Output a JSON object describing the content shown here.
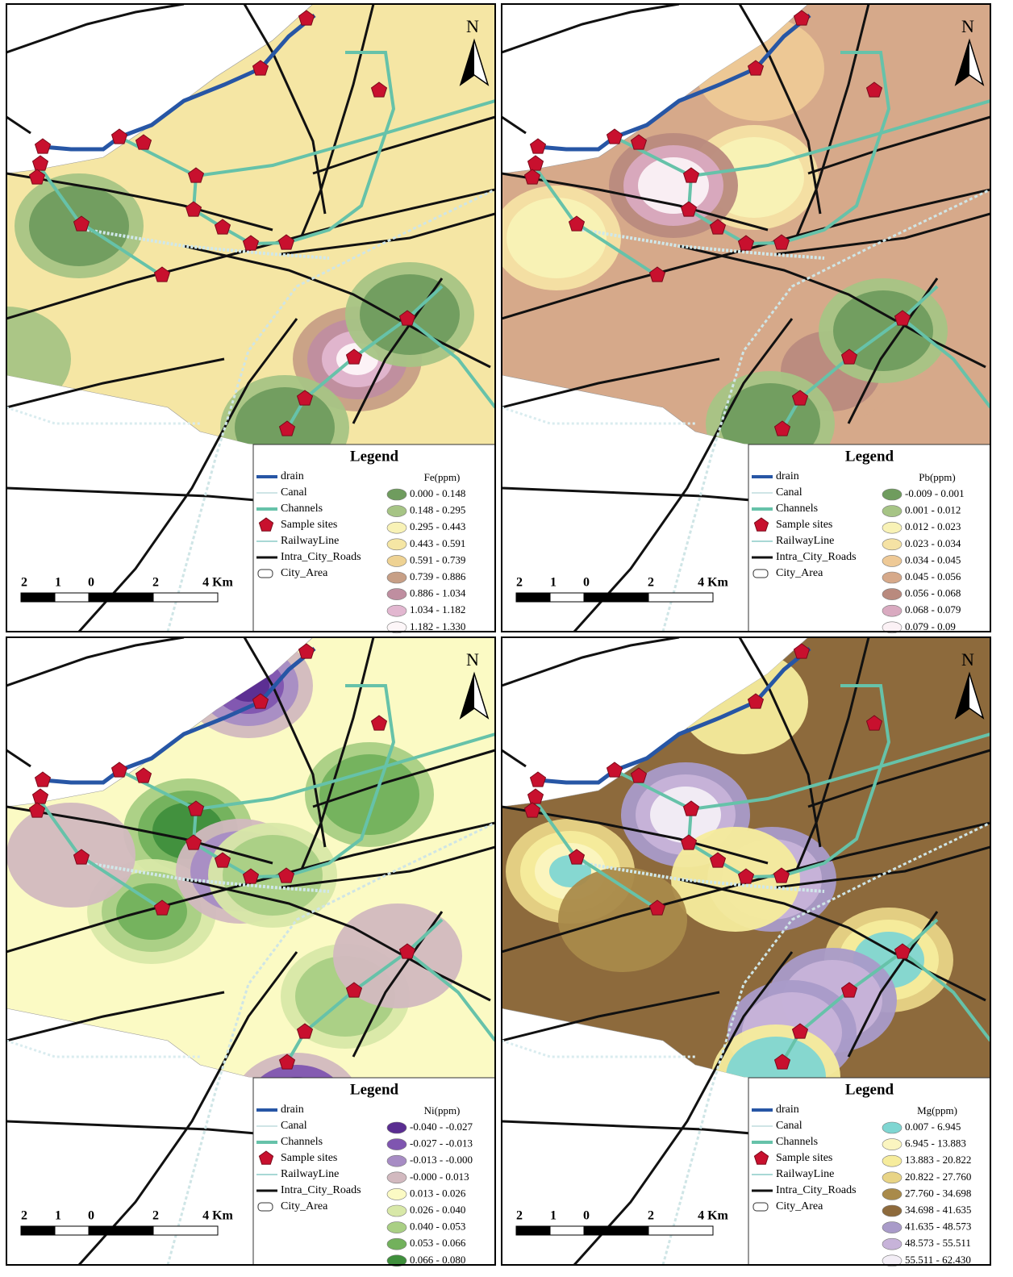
{
  "panels": [
    {
      "north": "N",
      "scale_labels": [
        "2",
        "1",
        "0",
        "2",
        "4 Km"
      ],
      "legend": {
        "title": "Legend",
        "layers": [
          "drain",
          "Canal",
          "Channels",
          "Sample sites",
          "RailwayLine",
          "Intra_City_Roads",
          "City_Area"
        ],
        "variable": "Fe(ppm)",
        "classes": [
          "0.000 - 0.148",
          "0.148 - 0.295",
          "0.295 - 0.443",
          "0.443 - 0.591",
          "0.591 - 0.739",
          "0.739 - 0.886",
          "0.886 - 1.034",
          "1.034 - 1.182",
          "1.182 - 1.330"
        ],
        "class_colors": [
          "#6f9c5e",
          "#a6c485",
          "#f8f2b6",
          "#f5e6a4",
          "#eed293",
          "#c79f86",
          "#bf8ea0",
          "#e2b7d0",
          "#fdf6f8"
        ]
      }
    },
    {
      "north": "N",
      "scale_labels": [
        "2",
        "1",
        "0",
        "2",
        "4 Km"
      ],
      "legend": {
        "title": "Legend",
        "layers": [
          "drain",
          "Canal",
          "Channels",
          "Sample sites",
          "RailwayLine",
          "Intra_City_Roads",
          "City_Area"
        ],
        "variable": "Pb(ppm)",
        "classes": [
          "-0.009 - 0.001",
          "0.001 - 0.012",
          "0.012 - 0.023",
          "0.023 - 0.034",
          "0.034 - 0.045",
          "0.045 - 0.056",
          "0.056 - 0.068",
          "0.068 - 0.079",
          "0.079 - 0.09"
        ],
        "class_colors": [
          "#6f9c5e",
          "#a6c485",
          "#f8f2b6",
          "#f5e2a4",
          "#eec996",
          "#d6a98a",
          "#b98a7e",
          "#d9aac0",
          "#fbf1f5"
        ]
      }
    },
    {
      "north": "N",
      "scale_labels": [
        "2",
        "1",
        "0",
        "2",
        "4 Km"
      ],
      "legend": {
        "title": "Legend",
        "layers": [
          "drain",
          "Canal",
          "Channels",
          "Sample sites",
          "RailwayLine",
          "Intra_City_Roads",
          "City_Area"
        ],
        "variable": "Ni(ppm)",
        "classes": [
          "-0.040 - -0.027",
          "-0.027 - -0.013",
          "-0.013 - -0.000",
          "-0.000 - 0.013",
          "0.013 - 0.026",
          "0.026 - 0.040",
          "0.040 - 0.053",
          "0.053 - 0.066",
          "0.066 - 0.080"
        ],
        "class_colors": [
          "#5a2d91",
          "#7f55b0",
          "#a78cc4",
          "#d2b9bf",
          "#fbfac4",
          "#d8e8a8",
          "#a9cf84",
          "#72b15c",
          "#3f8f3c"
        ]
      }
    },
    {
      "north": "N",
      "scale_labels": [
        "2",
        "1",
        "0",
        "2",
        "4 Km"
      ],
      "legend": {
        "title": "Legend",
        "layers": [
          "drain",
          "Canal",
          "Channels",
          "Sample sites",
          "RailwayLine",
          "Intra_City_Roads",
          "City_Area"
        ],
        "variable": "Mg(ppm)",
        "classes": [
          "0.007 - 6.945",
          "6.945 - 13.883",
          "13.883 - 20.822",
          "20.822 - 27.760",
          "27.760 - 34.698",
          "34.698 - 41.635",
          "41.635 - 48.573",
          "48.573 - 55.511",
          "55.511 - 62.430"
        ],
        "class_colors": [
          "#7fd6d2",
          "#fbf5c0",
          "#f6ec9c",
          "#e8d486",
          "#a98a4a",
          "#8d6a3c",
          "#a99bc9",
          "#c7b3d9",
          "#f3eef6"
        ]
      }
    }
  ]
}
